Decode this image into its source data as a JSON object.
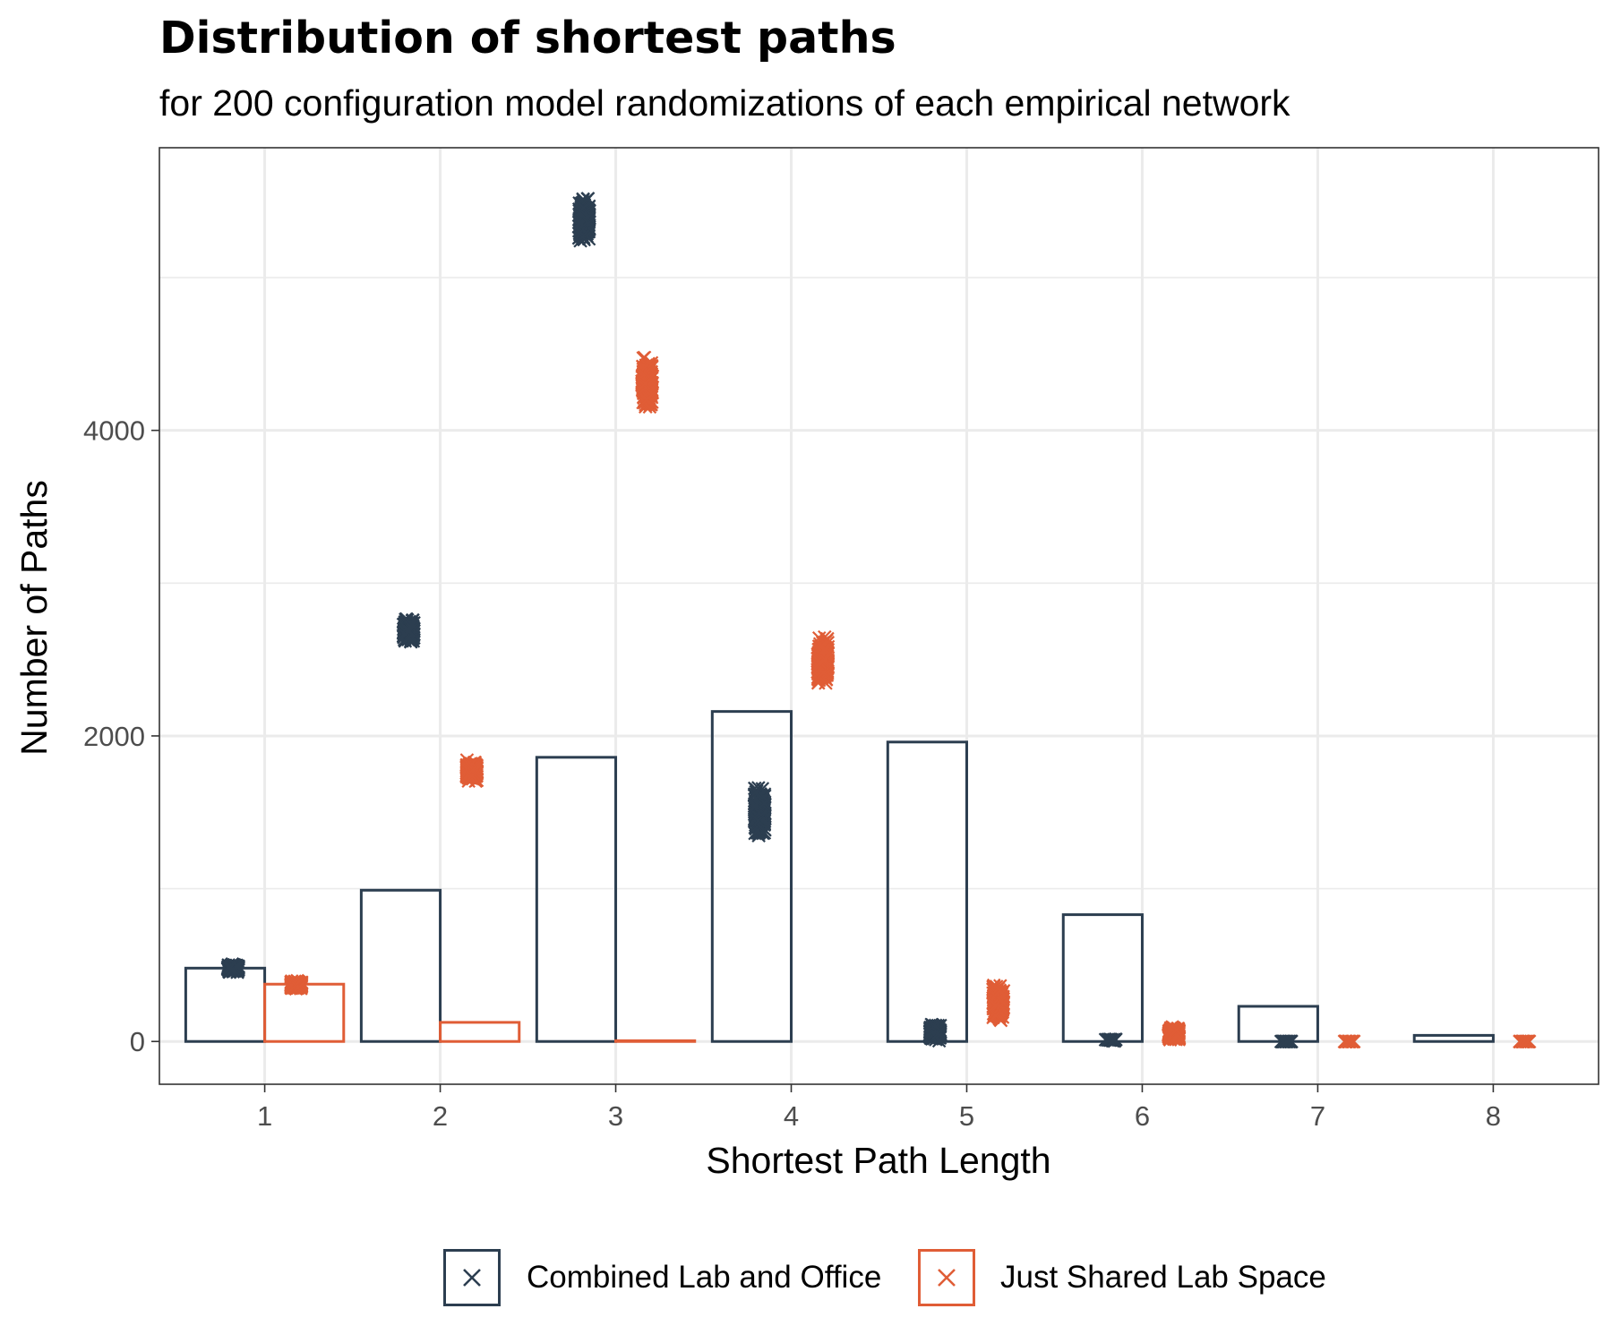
{
  "colors": {
    "combined": "#2c3e50",
    "shared": "#e05d36",
    "grid": "#ebebeb",
    "axis_text": "#4d4d4d"
  },
  "chart_data": {
    "type": "bar",
    "title": "Distribution of shortest paths",
    "subtitle": "for 200 configuration model randomizations of each empirical network",
    "xlabel": "Shortest Path Length",
    "ylabel": "Number of Paths",
    "x_ticks": [
      "1",
      "2",
      "3",
      "4",
      "5",
      "6",
      "7",
      "8"
    ],
    "y_ticks": [
      "0",
      "2000",
      "4000"
    ],
    "xlim": [
      0.4,
      8.6
    ],
    "ylim": [
      -280,
      5850
    ],
    "grid": true,
    "legend_position": "bottom",
    "marker": "×",
    "series": [
      {
        "name": "Combined Lab and Office",
        "color_key": "combined",
        "empirical_bars": [
          {
            "x": 1,
            "value": 480
          },
          {
            "x": 2,
            "value": 990
          },
          {
            "x": 3,
            "value": 1860
          },
          {
            "x": 4,
            "value": 2160
          },
          {
            "x": 5,
            "value": 1960
          },
          {
            "x": 6,
            "value": 830
          },
          {
            "x": 7,
            "value": 230
          },
          {
            "x": 8,
            "value": 40
          }
        ],
        "randomizations": [
          {
            "x": 1,
            "min": 450,
            "max": 510
          },
          {
            "x": 2,
            "min": 2600,
            "max": 2780
          },
          {
            "x": 3,
            "min": 5200,
            "max": 5550
          },
          {
            "x": 4,
            "min": 1320,
            "max": 1700
          },
          {
            "x": 5,
            "min": 0,
            "max": 120
          },
          {
            "x": 6,
            "min": 0,
            "max": 20
          },
          {
            "x": 7,
            "min": 0,
            "max": 0
          }
        ]
      },
      {
        "name": "Just Shared Lab Space",
        "color_key": "shared",
        "empirical_bars": [
          {
            "x": 1,
            "value": 375
          },
          {
            "x": 2,
            "value": 125
          },
          {
            "x": 3,
            "value": 5
          }
        ],
        "randomizations": [
          {
            "x": 1,
            "min": 340,
            "max": 400
          },
          {
            "x": 2,
            "min": 1690,
            "max": 1850
          },
          {
            "x": 3,
            "min": 4100,
            "max": 4520
          },
          {
            "x": 4,
            "min": 2300,
            "max": 2680
          },
          {
            "x": 5,
            "min": 100,
            "max": 410
          },
          {
            "x": 6,
            "min": 0,
            "max": 100
          },
          {
            "x": 7,
            "min": 0,
            "max": 0
          },
          {
            "x": 8,
            "min": 0,
            "max": 0
          }
        ]
      }
    ]
  }
}
